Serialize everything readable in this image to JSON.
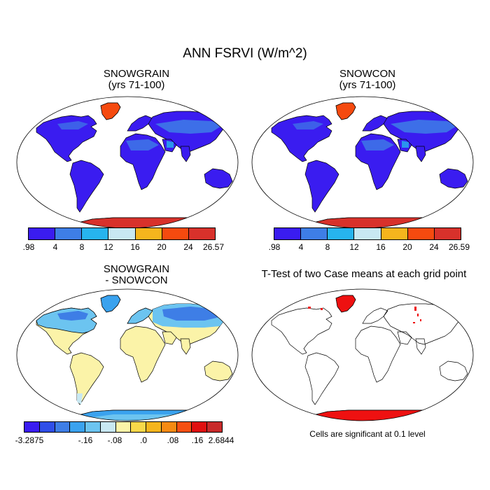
{
  "figure": {
    "title": "ANN FSRVI (W/m^2)"
  },
  "panels": {
    "p1": {
      "title_line1": "SNOWGRAIN",
      "title_line2": "(yrs 71-100)",
      "colorbar": {
        "colors": [
          "#3a1cf0",
          "#3e7ee6",
          "#27b4ee",
          "#c8e8f2",
          "#f5b51d",
          "#f54a0f",
          "#d8312b"
        ],
        "labels": [
          ".98",
          "4",
          "8",
          "12",
          "16",
          "20",
          "24",
          "26.57"
        ]
      }
    },
    "p2": {
      "title_line1": "SNOWCON",
      "title_line2": "(yrs 71-100)",
      "colorbar": {
        "colors": [
          "#3a1cf0",
          "#3e7ee6",
          "#27b4ee",
          "#c8e8f2",
          "#f5b51d",
          "#f54a0f",
          "#d8312b"
        ],
        "labels": [
          ".98",
          "4",
          "8",
          "12",
          "16",
          "20",
          "24",
          "26.59"
        ]
      }
    },
    "p3": {
      "title_line1": "SNOWGRAIN",
      "title_line2": "- SNOWCON",
      "colorbar": {
        "colors": [
          "#3a1cf0",
          "#2f4ee8",
          "#3e7ee6",
          "#3aa2ee",
          "#6cc4f0",
          "#c8e8f2",
          "#fbf3a8",
          "#f8d84a",
          "#f5b51d",
          "#f58a12",
          "#f55012",
          "#e01010",
          "#c82a2a"
        ],
        "labels": [
          "-3.2875",
          "-.16",
          "-.08",
          ".0",
          ".08",
          ".16",
          "2.6844"
        ]
      }
    },
    "p4": {
      "title": "T-Test of two Case means at each grid point",
      "note": "Cells are significant at 0.1 level"
    }
  }
}
